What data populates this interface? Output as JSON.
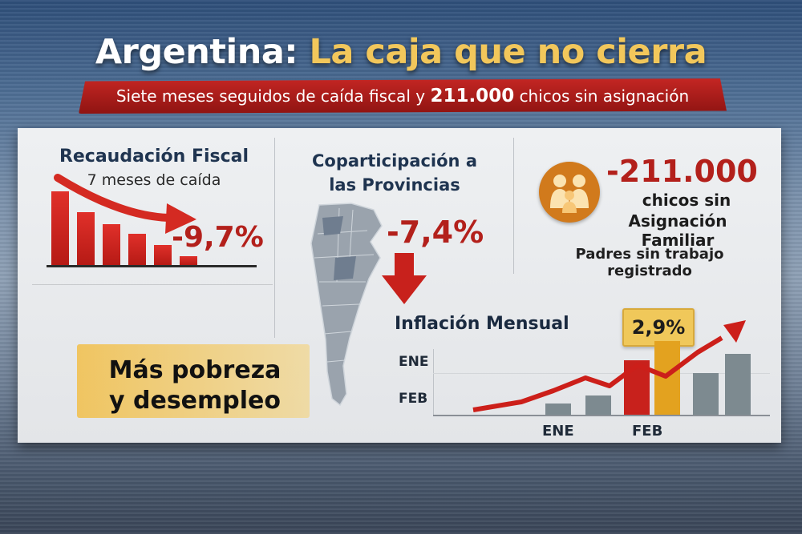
{
  "header": {
    "title_part1": "Argentina:",
    "title_part2": "La caja que no cierra",
    "subtitle_pre": "Siete meses seguidos de caída fiscal y",
    "subtitle_number": "211.000",
    "subtitle_post": "chicos sin asignación"
  },
  "recaudacion": {
    "title": "Recaudación Fiscal",
    "subtitle": "7 meses de caída",
    "value": "-9,7%",
    "bar_levels": [
      1.0,
      0.72,
      0.55,
      0.42,
      0.27,
      0.12
    ]
  },
  "coparticipacion": {
    "title_line1": "Coparticipación a",
    "title_line2": "las Provincias",
    "value": "-7,4%"
  },
  "asignacion": {
    "value": "-211.000",
    "line1": "chicos sin",
    "line2": "Asignación Familiar",
    "note": "Padres sin trabajo registrado"
  },
  "callout": {
    "line1": "Más pobreza",
    "line2": "y desempleo"
  },
  "chart_data": {
    "type": "bar",
    "title": "Inflación Mensual",
    "highlight_label": "2,9%",
    "y_tick_labels": [
      "ENE",
      "FEB"
    ],
    "x_tick_labels": [
      "ENE",
      "FEB"
    ],
    "highlight_value": 2.9,
    "colors": {
      "neutral": "#7d8a90",
      "red": "#c8211c",
      "highlight": "#e3a21f",
      "trend": "#cc1f1a"
    }
  },
  "colors": {
    "accent_red": "#b3201b",
    "accent_yellow": "#f2c75b",
    "navy": "#1f3450"
  }
}
